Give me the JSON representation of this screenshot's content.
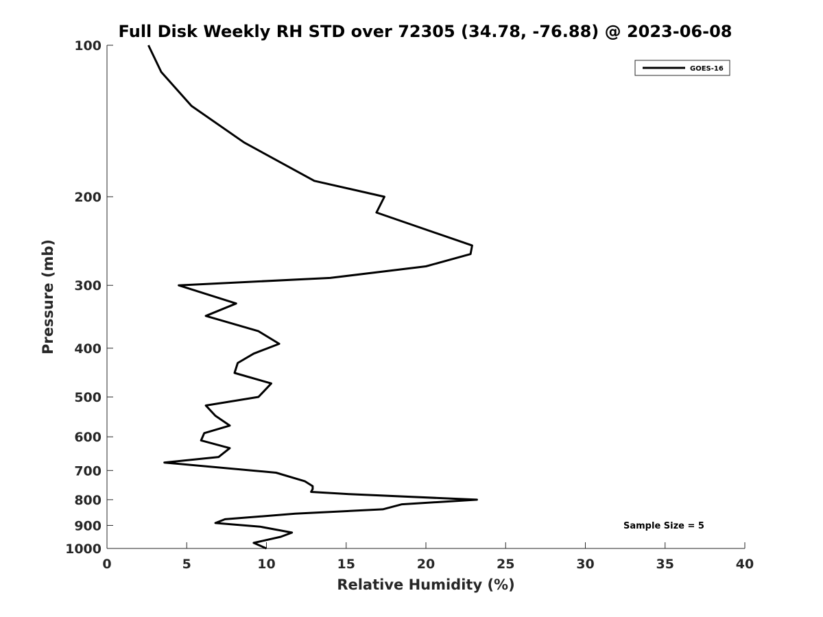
{
  "chart_data": {
    "type": "line",
    "title": "Full Disk Weekly RH STD over 72305 (34.78, -76.88) @ 2023-06-08",
    "xlabel": "Relative Humidity (%)",
    "ylabel": "Pressure (mb)",
    "xlim": [
      0,
      40
    ],
    "ylim": [
      100,
      1000
    ],
    "y_scale": "log",
    "y_reversed": true,
    "x_ticks": [
      "0",
      "5",
      "10",
      "15",
      "20",
      "25",
      "30",
      "35",
      "40"
    ],
    "y_ticks": [
      "100",
      "200",
      "300",
      "400",
      "500",
      "600",
      "700",
      "800",
      "900",
      "1000"
    ],
    "grid": false,
    "legend_position": "top-right",
    "annotation": "Sample Size = 5",
    "series": [
      {
        "name": "GOES-16",
        "color": "#000000",
        "x": [
          2.6,
          3.4,
          5.3,
          8.6,
          13.0,
          17.4,
          16.9,
          22.9,
          22.8,
          20.0,
          14.0,
          4.5,
          8.1,
          6.2,
          9.5,
          10.8,
          9.2,
          8.2,
          8.0,
          10.3,
          9.5,
          6.2,
          6.8,
          7.7,
          6.1,
          5.9,
          7.7,
          7.0,
          3.6,
          10.6,
          12.4,
          12.9,
          12.9,
          12.8,
          15.2,
          23.2,
          18.5,
          17.3,
          11.8,
          7.4,
          6.8,
          9.6,
          11.6,
          10.9,
          9.2,
          10.0
        ],
        "y": [
          100,
          113,
          132,
          156,
          186,
          200,
          215,
          250,
          260,
          275,
          290,
          300,
          326,
          345,
          370,
          392,
          410,
          428,
          448,
          470,
          500,
          520,
          545,
          570,
          590,
          610,
          632,
          658,
          675,
          707,
          735,
          752,
          762,
          772,
          780,
          800,
          817,
          836,
          853,
          875,
          890,
          905,
          930,
          948,
          975,
          1000
        ]
      }
    ]
  }
}
